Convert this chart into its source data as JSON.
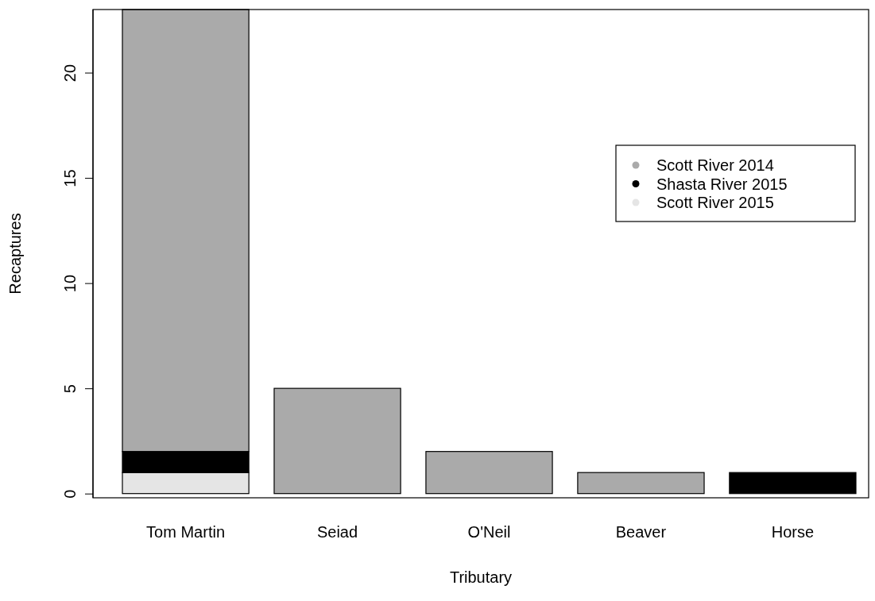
{
  "chart_data": {
    "type": "bar",
    "stacked": true,
    "xlabel": "Tributary",
    "ylabel": "Recaptures",
    "categories": [
      "Tom Martin",
      "Seiad",
      "O'Neil",
      "Beaver",
      "Horse"
    ],
    "series": [
      {
        "name": "Scott River 2015",
        "color": "#e5e5e5",
        "values": [
          1,
          0,
          0,
          0,
          0
        ]
      },
      {
        "name": "Shasta River 2015",
        "color": "#000000",
        "values": [
          1,
          0,
          0,
          0,
          1
        ]
      },
      {
        "name": "Scott River 2014",
        "color": "#aaaaaa",
        "values": [
          21,
          5,
          2,
          1,
          0
        ]
      }
    ],
    "ylim": [
      -0.2,
      23
    ],
    "yticks": [
      0,
      5,
      10,
      15,
      20
    ],
    "legend": "right",
    "grid": false
  }
}
